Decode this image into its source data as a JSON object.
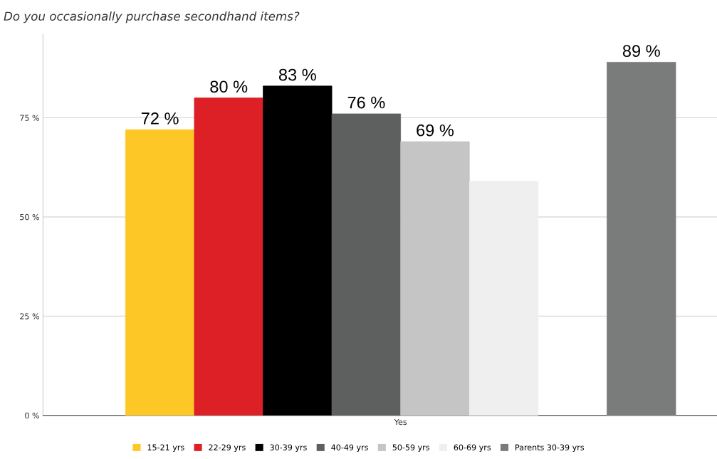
{
  "chart_data": {
    "type": "bar",
    "title": "Do you occasionally purchase secondhand items?",
    "categories": [
      "Yes"
    ],
    "series": [
      {
        "name": "15-21 yrs",
        "color": "#fdc825",
        "values": [
          72
        ],
        "value_labels": [
          "72 %"
        ]
      },
      {
        "name": "22-29 yrs",
        "color": "#dc2026",
        "values": [
          80
        ],
        "value_labels": [
          "80 %"
        ]
      },
      {
        "name": "30-39 yrs",
        "color": "#000000",
        "values": [
          83
        ],
        "value_labels": [
          "83 %"
        ]
      },
      {
        "name": "40-49 yrs",
        "color": "#5e6060",
        "values": [
          76
        ],
        "value_labels": [
          "76 %"
        ]
      },
      {
        "name": "50-59 yrs",
        "color": "#c4c5c4",
        "values": [
          69
        ],
        "value_labels": [
          "69 %"
        ]
      },
      {
        "name": "60-69 yrs",
        "color": "#efefef",
        "values": [
          59
        ],
        "value_labels": [
          null
        ]
      },
      {
        "name": "Parents 30-39 yrs",
        "color": "#7a7b7b",
        "values": [
          89
        ],
        "value_labels": [
          "89 %"
        ]
      }
    ],
    "ylim": [
      0,
      96
    ],
    "yticks": [
      {
        "value": 0,
        "label": "0 %"
      },
      {
        "value": 25,
        "label": "25 %"
      },
      {
        "value": 50,
        "label": "50 %"
      },
      {
        "value": 75,
        "label": "75 %"
      }
    ],
    "grid": "y",
    "legend": "bottom"
  }
}
